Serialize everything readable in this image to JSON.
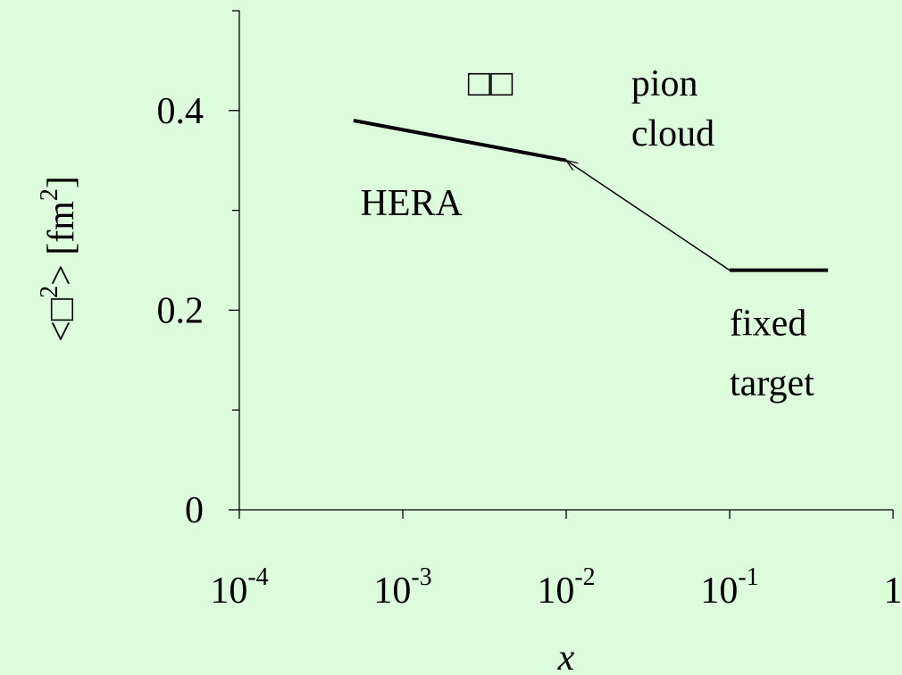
{
  "colors": {
    "background": "#dcfcdc",
    "ink": "#000000"
  },
  "chart_data": {
    "type": "line",
    "xscale": "log",
    "xlim": [
      0.0001,
      1
    ],
    "ylim": [
      0,
      0.5
    ],
    "x_ticks": [
      {
        "value": 0.0001,
        "base": "10",
        "exp": "-4"
      },
      {
        "value": 0.001,
        "base": "10",
        "exp": "-3"
      },
      {
        "value": 0.01,
        "base": "10",
        "exp": "-2"
      },
      {
        "value": 0.1,
        "base": "10",
        "exp": "-1"
      },
      {
        "value": 1,
        "base": "1",
        "exp": ""
      }
    ],
    "y_ticks": [
      {
        "value": 0,
        "label": "0"
      },
      {
        "value": 0.2,
        "label": "0.2"
      },
      {
        "value": 0.4,
        "label": "0.4"
      }
    ],
    "y_minor_ticks": [
      0.1,
      0.3,
      0.5
    ],
    "xlabel": "x",
    "ylabel": {
      "prefix": "<",
      "symbol": "□",
      "sup": "2",
      "suffix": ">  [fm",
      "unit_sup": "2",
      "close": "]"
    },
    "series": [
      {
        "x": [
          0.0005,
          0.01
        ],
        "y": [
          0.39,
          0.35
        ],
        "style": "thick"
      },
      {
        "x": [
          0.1,
          0.4
        ],
        "y": [
          0.24,
          0.24
        ],
        "style": "thick"
      }
    ],
    "arrow": {
      "from": [
        0.1,
        0.24
      ],
      "to": [
        0.01,
        0.35
      ]
    },
    "annotations": [
      {
        "text": "□□",
        "x": 0.0025,
        "y": 0.415
      },
      {
        "text": "pion",
        "x": 0.025,
        "y": 0.415
      },
      {
        "text": "cloud",
        "x": 0.025,
        "y": 0.365
      },
      {
        "text": "HERA",
        "x": 0.00055,
        "y": 0.295
      },
      {
        "text": "fixed",
        "x": 0.1,
        "y": 0.175
      },
      {
        "text": "target",
        "x": 0.1,
        "y": 0.115
      }
    ]
  }
}
